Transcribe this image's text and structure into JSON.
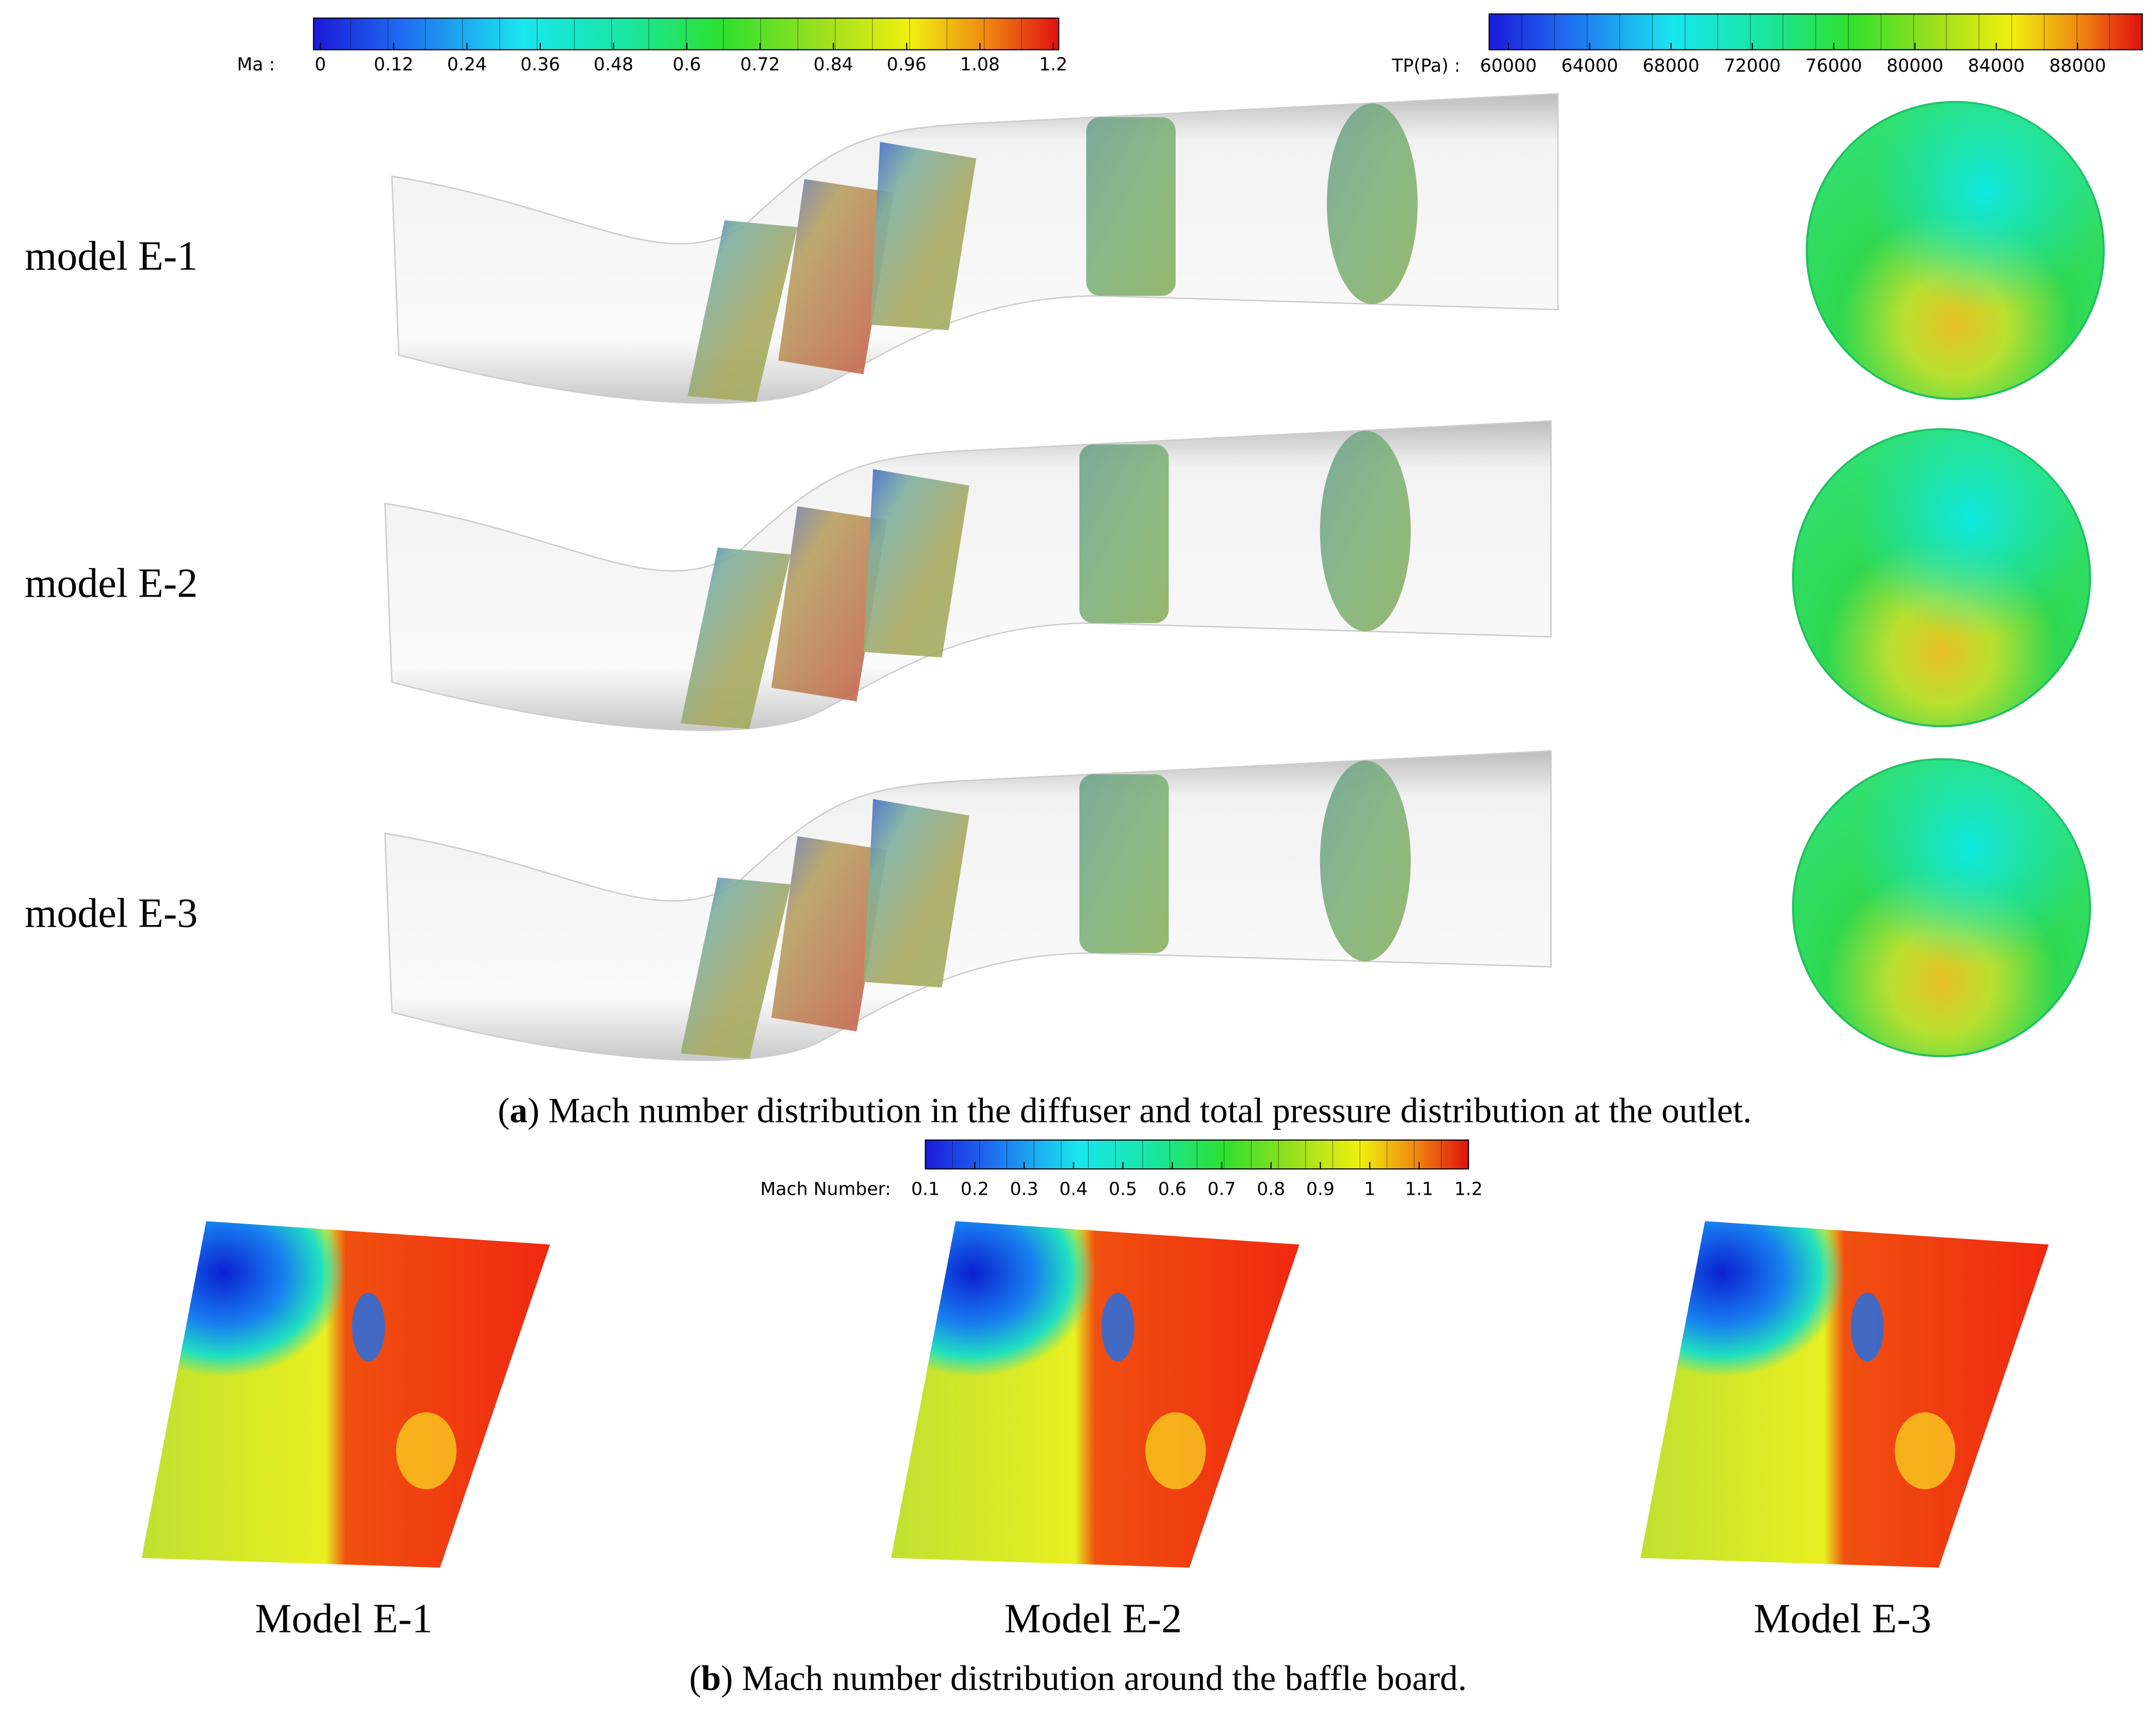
{
  "colorbars": [
    {
      "label": "Ma :",
      "ticks": [
        0,
        0.12,
        0.24,
        0.36,
        0.48,
        0.6,
        0.72,
        0.84,
        0.96,
        1.08,
        1.2
      ]
    },
    {
      "label": "TP(Pa) :",
      "ticks": [
        60000,
        64000,
        68000,
        72000,
        76000,
        80000,
        84000,
        88000
      ]
    },
    {
      "label": "Mach Number:",
      "ticks": [
        0.1,
        0.2,
        0.3,
        0.4,
        0.5,
        0.6,
        0.7,
        0.8,
        0.9,
        1,
        1.1,
        1.2
      ]
    }
  ],
  "panel_a": {
    "rows": [
      "model E-1",
      "model E-2",
      "model E-3"
    ],
    "caption": {
      "prefix": "(",
      "label": "a",
      "text": ") Mach number distribution in the diffuser and total pressure distribution at the outlet."
    }
  },
  "panel_b": {
    "models": [
      "Model E-1",
      "Model E-2",
      "Model E-3"
    ],
    "caption": {
      "prefix": "(",
      "label": "b",
      "text": ") Mach number distribution around the baffle board."
    }
  }
}
